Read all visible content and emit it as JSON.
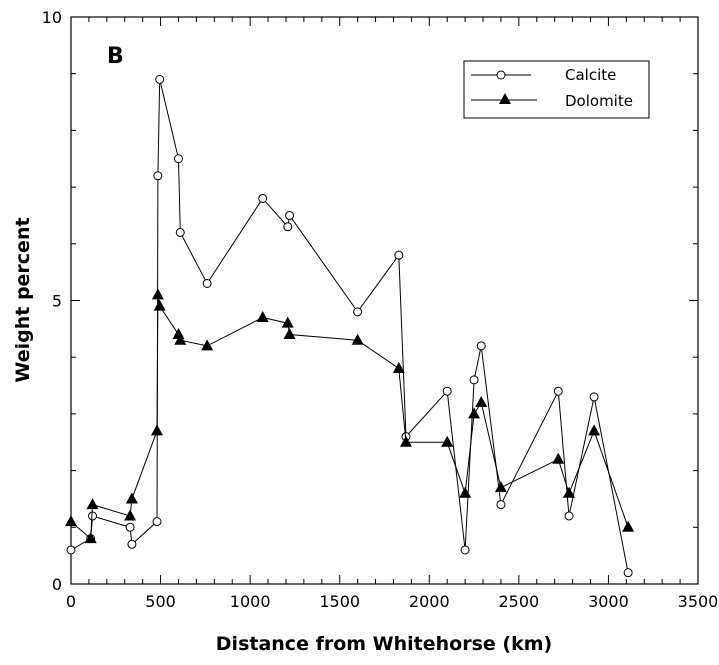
{
  "chart_data": {
    "type": "line",
    "panel_label": "B",
    "xlabel": "Distance  from  Whitehorse  (km)",
    "ylabel": "Weight  percent",
    "xlim": [
      0,
      3500
    ],
    "ylim": [
      0,
      10
    ],
    "x_ticks": [
      0,
      500,
      1000,
      1500,
      2000,
      2500,
      3000,
      3500
    ],
    "x_tick_labels": [
      "0",
      "500",
      "1000",
      "1500",
      "2000",
      "2500",
      "3000",
      "3500"
    ],
    "y_ticks": [
      0,
      5,
      10
    ],
    "y_tick_labels": [
      "0",
      "5",
      "10"
    ],
    "grid": false,
    "legend_position": "top-right",
    "series": [
      {
        "name": "Calcite",
        "marker": "open-circle",
        "x": [
          0,
          110,
          120,
          330,
          340,
          480,
          485,
          495,
          600,
          610,
          760,
          1070,
          1210,
          1220,
          1600,
          1830,
          1870,
          2100,
          2200,
          2250,
          2290,
          2400,
          2720,
          2780,
          2920,
          3110
        ],
        "y": [
          0.6,
          0.8,
          1.2,
          1.0,
          0.7,
          1.1,
          7.2,
          8.9,
          7.5,
          6.2,
          5.3,
          6.8,
          6.3,
          6.5,
          4.8,
          5.8,
          2.6,
          3.4,
          0.6,
          3.6,
          4.2,
          1.4,
          3.4,
          1.2,
          3.3,
          0.2
        ]
      },
      {
        "name": "Dolomite",
        "marker": "filled-triangle",
        "x": [
          0,
          110,
          120,
          330,
          340,
          480,
          485,
          495,
          600,
          610,
          760,
          1070,
          1210,
          1220,
          1600,
          1830,
          1870,
          2100,
          2200,
          2250,
          2290,
          2400,
          2720,
          2780,
          2920,
          3110
        ],
        "y": [
          1.1,
          0.8,
          1.4,
          1.2,
          1.5,
          2.7,
          5.1,
          4.9,
          4.4,
          4.3,
          4.2,
          4.7,
          4.6,
          4.4,
          4.3,
          3.8,
          2.5,
          2.5,
          1.6,
          3.0,
          3.2,
          1.7,
          2.2,
          1.6,
          2.7,
          1.0
        ]
      }
    ]
  }
}
